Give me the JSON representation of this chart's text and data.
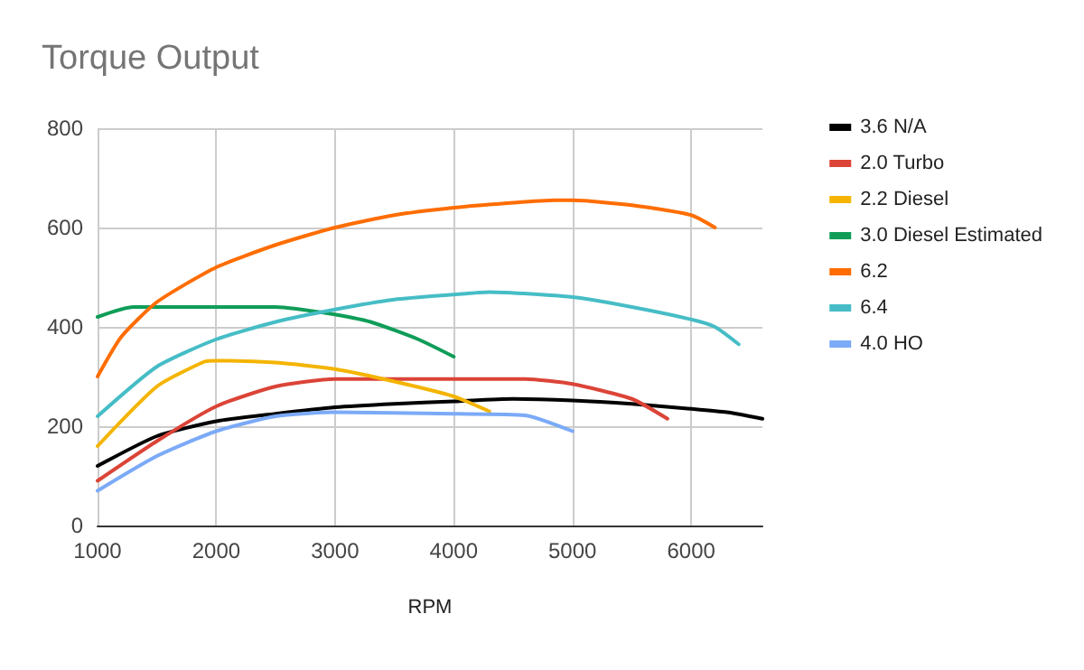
{
  "chart_data": {
    "type": "line",
    "title": "Torque Output",
    "xlabel": "RPM",
    "xlim": [
      1000,
      6600
    ],
    "xticks": [
      1000,
      2000,
      3000,
      4000,
      5000,
      6000
    ],
    "ylim": [
      0,
      800
    ],
    "yticks": [
      0,
      200,
      400,
      600,
      800
    ],
    "grid": true,
    "legend": "right",
    "marker": "none",
    "line_style": "solid",
    "series": [
      {
        "name": "3.6 N/A",
        "color": "#000000",
        "x": [
          1000,
          1500,
          2000,
          2500,
          3000,
          3500,
          4000,
          4500,
          5000,
          5500,
          6000,
          6300,
          6600
        ],
        "values": [
          120,
          180,
          210,
          225,
          238,
          245,
          250,
          255,
          252,
          245,
          235,
          228,
          215
        ]
      },
      {
        "name": "2.0 Turbo",
        "color": "#db4437",
        "x": [
          1000,
          1500,
          2000,
          2500,
          3000,
          4000,
          4600,
          5000,
          5500,
          5800
        ],
        "values": [
          90,
          170,
          240,
          280,
          295,
          295,
          295,
          285,
          255,
          215
        ]
      },
      {
        "name": "2.2 Diesel",
        "color": "#f4b400",
        "x": [
          1000,
          1500,
          1900,
          2000,
          2500,
          3000,
          3500,
          4000,
          4300
        ],
        "values": [
          160,
          280,
          330,
          332,
          328,
          315,
          290,
          260,
          230
        ]
      },
      {
        "name": "3.0 Diesel Estimated",
        "color": "#0f9d58",
        "x": [
          1000,
          1300,
          2000,
          2500,
          3000,
          3300,
          3700,
          4000
        ],
        "values": [
          420,
          440,
          440,
          440,
          425,
          410,
          375,
          340
        ]
      },
      {
        "name": "6.2",
        "color": "#ff6d01",
        "x": [
          1000,
          1200,
          1500,
          2000,
          2500,
          3000,
          3500,
          4000,
          4500,
          4850,
          5000,
          5500,
          6000,
          6200
        ],
        "values": [
          300,
          380,
          450,
          520,
          565,
          600,
          625,
          640,
          650,
          655,
          655,
          645,
          625,
          600
        ]
      },
      {
        "name": "6.4",
        "color": "#46bdc6",
        "x": [
          1000,
          1500,
          2000,
          2500,
          3000,
          3500,
          4000,
          4300,
          5000,
          5500,
          6000,
          6200,
          6400
        ],
        "values": [
          220,
          320,
          375,
          410,
          435,
          455,
          465,
          470,
          460,
          440,
          415,
          400,
          365
        ]
      },
      {
        "name": "4.0 HO",
        "color": "#7baaf7",
        "x": [
          1000,
          1500,
          2000,
          2500,
          3000,
          4000,
          4600,
          5000
        ],
        "values": [
          70,
          140,
          190,
          220,
          228,
          225,
          222,
          190
        ]
      }
    ]
  }
}
